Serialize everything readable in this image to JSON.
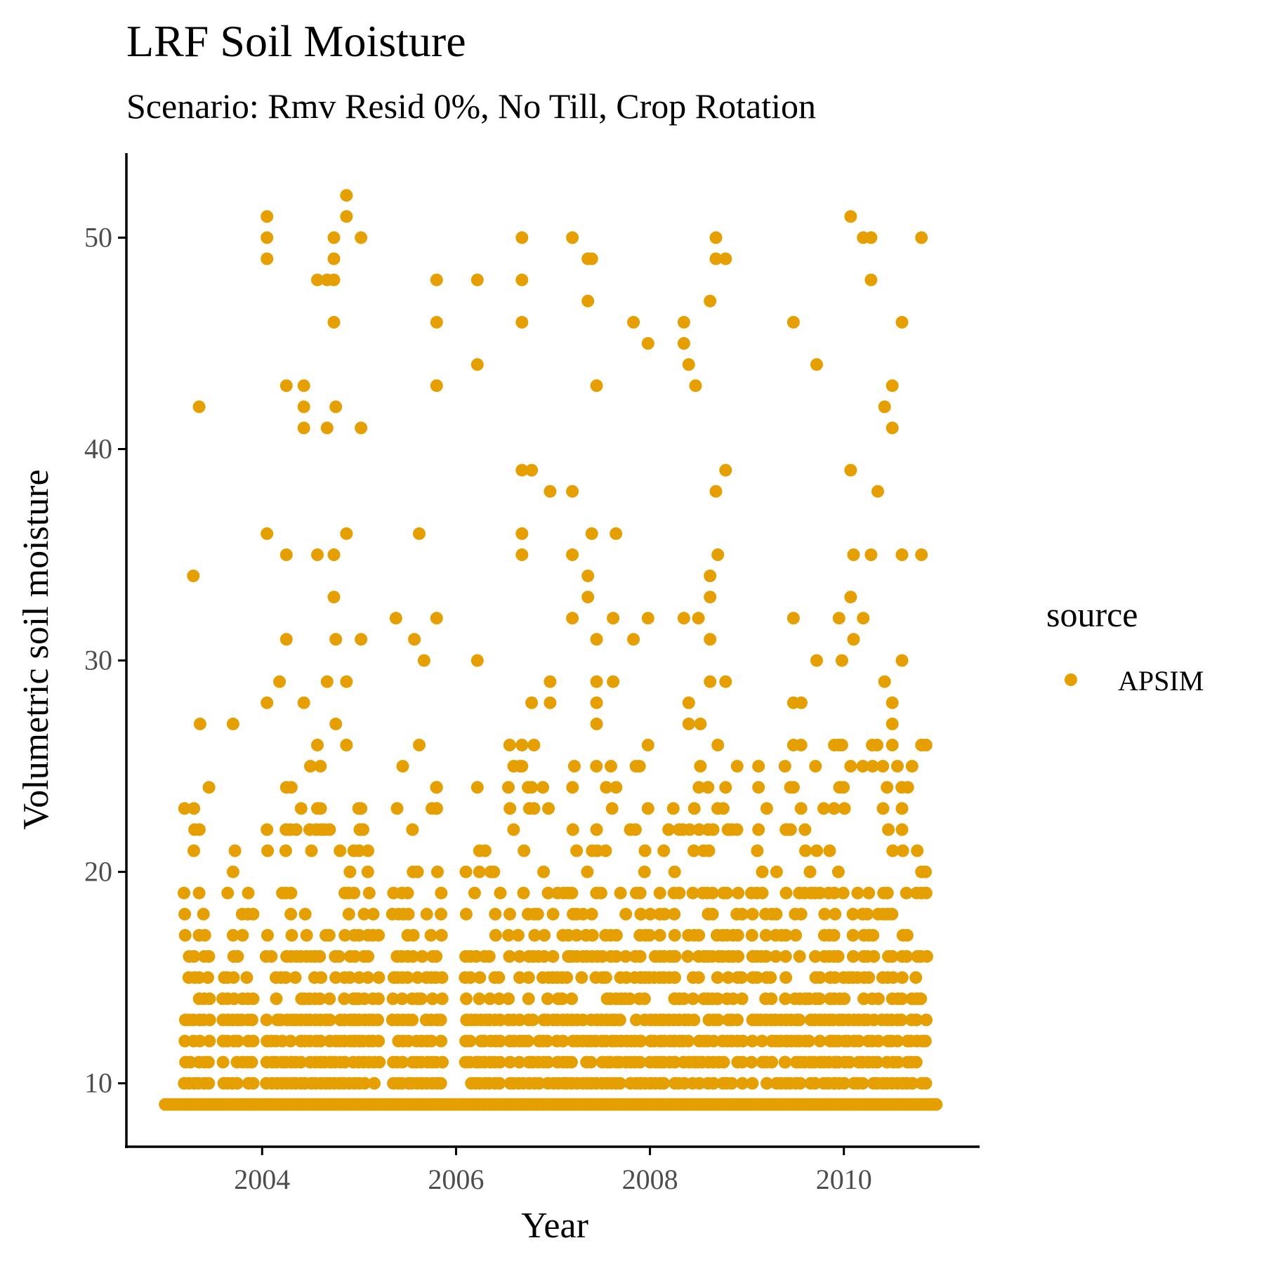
{
  "chart_data": {
    "type": "scatter",
    "title": "LRF Soil Moisture",
    "subtitle": "Scenario: Rmv Resid 0%, No Till, Crop Rotation",
    "xlabel": "Year",
    "ylabel": "Volumetric soil moisture",
    "xlim": [
      2002.6,
      2011.4
    ],
    "ylim": [
      7.0,
      54.0
    ],
    "x_ticks": [
      2004,
      2006,
      2008,
      2010
    ],
    "y_ticks": [
      10,
      20,
      30,
      40,
      50
    ],
    "grid": false,
    "legend": {
      "title": "source",
      "position": "right"
    },
    "series": [
      {
        "name": "APSIM",
        "color": "#E69F00",
        "seed_points": [
          [
            2003.29,
            34
          ],
          [
            2003.35,
            42
          ],
          [
            2003.36,
            27
          ],
          [
            2003.7,
            27
          ],
          [
            2003.72,
            21
          ],
          [
            2003.7,
            20
          ],
          [
            2004.05,
            51
          ],
          [
            2004.05,
            50
          ],
          [
            2004.05,
            49
          ],
          [
            2004.05,
            36
          ],
          [
            2004.05,
            28
          ],
          [
            2004.05,
            22
          ],
          [
            2004.18,
            29
          ],
          [
            2004.25,
            43
          ],
          [
            2004.25,
            35
          ],
          [
            2004.25,
            31
          ],
          [
            2004.43,
            43
          ],
          [
            2004.43,
            42
          ],
          [
            2004.43,
            41
          ],
          [
            2004.43,
            28
          ],
          [
            2004.57,
            48
          ],
          [
            2004.57,
            35
          ],
          [
            2004.57,
            26
          ],
          [
            2004.57,
            23
          ],
          [
            2004.67,
            48
          ],
          [
            2004.67,
            41
          ],
          [
            2004.67,
            29
          ],
          [
            2004.74,
            50
          ],
          [
            2004.74,
            49
          ],
          [
            2004.74,
            48
          ],
          [
            2004.74,
            46
          ],
          [
            2004.74,
            35
          ],
          [
            2004.74,
            33
          ],
          [
            2004.76,
            42
          ],
          [
            2004.76,
            31
          ],
          [
            2004.76,
            27
          ],
          [
            2004.87,
            52
          ],
          [
            2004.87,
            51
          ],
          [
            2004.87,
            36
          ],
          [
            2004.87,
            29
          ],
          [
            2004.87,
            26
          ],
          [
            2005.02,
            50
          ],
          [
            2005.02,
            41
          ],
          [
            2005.02,
            31
          ],
          [
            2005.02,
            23
          ],
          [
            2005.38,
            32
          ],
          [
            2005.45,
            25
          ],
          [
            2005.57,
            31
          ],
          [
            2005.62,
            36
          ],
          [
            2005.62,
            26
          ],
          [
            2005.67,
            30
          ],
          [
            2005.8,
            48
          ],
          [
            2005.8,
            46
          ],
          [
            2005.8,
            43
          ],
          [
            2005.8,
            32
          ],
          [
            2005.8,
            24
          ],
          [
            2005.8,
            23
          ],
          [
            2006.22,
            48
          ],
          [
            2006.22,
            44
          ],
          [
            2006.22,
            30
          ],
          [
            2006.22,
            24
          ],
          [
            2006.3,
            21
          ],
          [
            2006.39,
            20
          ],
          [
            2006.68,
            50
          ],
          [
            2006.68,
            48
          ],
          [
            2006.68,
            46
          ],
          [
            2006.68,
            39
          ],
          [
            2006.68,
            36
          ],
          [
            2006.68,
            35
          ],
          [
            2006.68,
            26
          ],
          [
            2006.68,
            25
          ],
          [
            2006.78,
            39
          ],
          [
            2006.78,
            28
          ],
          [
            2006.78,
            24
          ],
          [
            2006.97,
            38
          ],
          [
            2006.97,
            29
          ],
          [
            2006.97,
            28
          ],
          [
            2007.2,
            50
          ],
          [
            2007.2,
            38
          ],
          [
            2007.2,
            35
          ],
          [
            2007.2,
            32
          ],
          [
            2007.22,
            25
          ],
          [
            2007.36,
            49
          ],
          [
            2007.36,
            47
          ],
          [
            2007.36,
            34
          ],
          [
            2007.36,
            33
          ],
          [
            2007.4,
            49
          ],
          [
            2007.4,
            36
          ],
          [
            2007.45,
            43
          ],
          [
            2007.45,
            31
          ],
          [
            2007.45,
            29
          ],
          [
            2007.45,
            28
          ],
          [
            2007.45,
            27
          ],
          [
            2007.65,
            36
          ],
          [
            2007.62,
            32
          ],
          [
            2007.62,
            29
          ],
          [
            2007.83,
            46
          ],
          [
            2007.83,
            31
          ],
          [
            2007.98,
            45
          ],
          [
            2007.98,
            32
          ],
          [
            2007.98,
            26
          ],
          [
            2007.98,
            23
          ],
          [
            2008.35,
            46
          ],
          [
            2008.35,
            45
          ],
          [
            2008.35,
            32
          ],
          [
            2008.4,
            44
          ],
          [
            2008.4,
            28
          ],
          [
            2008.4,
            27
          ],
          [
            2008.47,
            43
          ],
          [
            2008.5,
            32
          ],
          [
            2008.52,
            27
          ],
          [
            2008.52,
            25
          ],
          [
            2008.62,
            47
          ],
          [
            2008.62,
            34
          ],
          [
            2008.62,
            33
          ],
          [
            2008.62,
            31
          ],
          [
            2008.62,
            29
          ],
          [
            2008.68,
            50
          ],
          [
            2008.68,
            49
          ],
          [
            2008.68,
            38
          ],
          [
            2008.7,
            35
          ],
          [
            2008.7,
            26
          ],
          [
            2008.78,
            49
          ],
          [
            2008.78,
            39
          ],
          [
            2008.78,
            29
          ],
          [
            2008.78,
            24
          ],
          [
            2009.12,
            25
          ],
          [
            2009.12,
            24
          ],
          [
            2009.12,
            22
          ],
          [
            2009.48,
            46
          ],
          [
            2009.48,
            32
          ],
          [
            2009.48,
            28
          ],
          [
            2009.48,
            26
          ],
          [
            2009.48,
            24
          ],
          [
            2009.56,
            28
          ],
          [
            2009.72,
            44
          ],
          [
            2009.72,
            30
          ],
          [
            2009.72,
            21
          ],
          [
            2009.95,
            32
          ],
          [
            2009.98,
            30
          ],
          [
            2009.98,
            26
          ],
          [
            2010.07,
            51
          ],
          [
            2010.07,
            39
          ],
          [
            2010.07,
            33
          ],
          [
            2010.07,
            25
          ],
          [
            2010.1,
            35
          ],
          [
            2010.1,
            31
          ],
          [
            2010.2,
            50
          ],
          [
            2010.2,
            32
          ],
          [
            2010.28,
            50
          ],
          [
            2010.28,
            48
          ],
          [
            2010.28,
            35
          ],
          [
            2010.35,
            38
          ],
          [
            2010.42,
            42
          ],
          [
            2010.42,
            29
          ],
          [
            2010.5,
            43
          ],
          [
            2010.5,
            41
          ],
          [
            2010.5,
            28
          ],
          [
            2010.5,
            27
          ],
          [
            2010.5,
            26
          ],
          [
            2010.6,
            46
          ],
          [
            2010.6,
            35
          ],
          [
            2010.6,
            30
          ],
          [
            2010.6,
            23
          ],
          [
            2010.6,
            22
          ],
          [
            2010.8,
            50
          ],
          [
            2010.8,
            35
          ],
          [
            2010.8,
            26
          ],
          [
            2010.8,
            20
          ]
        ],
        "dense_clusters": [
          {
            "x_range": [
              2003.2,
              2003.45
            ],
            "y_range": [
              10,
              24
            ],
            "step": 0.05
          },
          {
            "x_range": [
              2003.6,
              2003.9
            ],
            "y_range": [
              10,
              21
            ],
            "step": 0.05
          },
          {
            "x_range": [
              2004.05,
              2004.3
            ],
            "y_range": [
              10,
              25
            ],
            "step": 0.05
          },
          {
            "x_range": [
              2004.35,
              2004.95
            ],
            "y_range": [
              10,
              25
            ],
            "step": 0.05
          },
          {
            "x_range": [
              2004.95,
              2005.2
            ],
            "y_range": [
              10,
              23
            ],
            "step": 0.05
          },
          {
            "x_range": [
              2005.35,
              2005.85
            ],
            "y_range": [
              10,
              24
            ],
            "step": 0.05
          },
          {
            "x_range": [
              2006.1,
              2006.45
            ],
            "y_range": [
              10,
              21
            ],
            "step": 0.05
          },
          {
            "x_range": [
              2006.55,
              2006.85
            ],
            "y_range": [
              10,
              26
            ],
            "step": 0.05
          },
          {
            "x_range": [
              2006.9,
              2007.9
            ],
            "y_range": [
              10,
              25
            ],
            "step": 0.05
          },
          {
            "x_range": [
              2007.9,
              2008.25
            ],
            "y_range": [
              10,
              23
            ],
            "step": 0.05
          },
          {
            "x_range": [
              2008.25,
              2008.95
            ],
            "y_range": [
              10,
              25
            ],
            "step": 0.05
          },
          {
            "x_range": [
              2009.05,
              2009.4
            ],
            "y_range": [
              10,
              25
            ],
            "step": 0.05
          },
          {
            "x_range": [
              2009.4,
              2009.9
            ],
            "y_range": [
              10,
              28
            ],
            "step": 0.05
          },
          {
            "x_range": [
              2009.9,
              2010.85
            ],
            "y_range": [
              10,
              26
            ],
            "step": 0.05
          }
        ],
        "baseline": {
          "y": 9,
          "x_range": [
            2003.0,
            2010.97
          ],
          "step": 0.033
        }
      }
    ]
  }
}
